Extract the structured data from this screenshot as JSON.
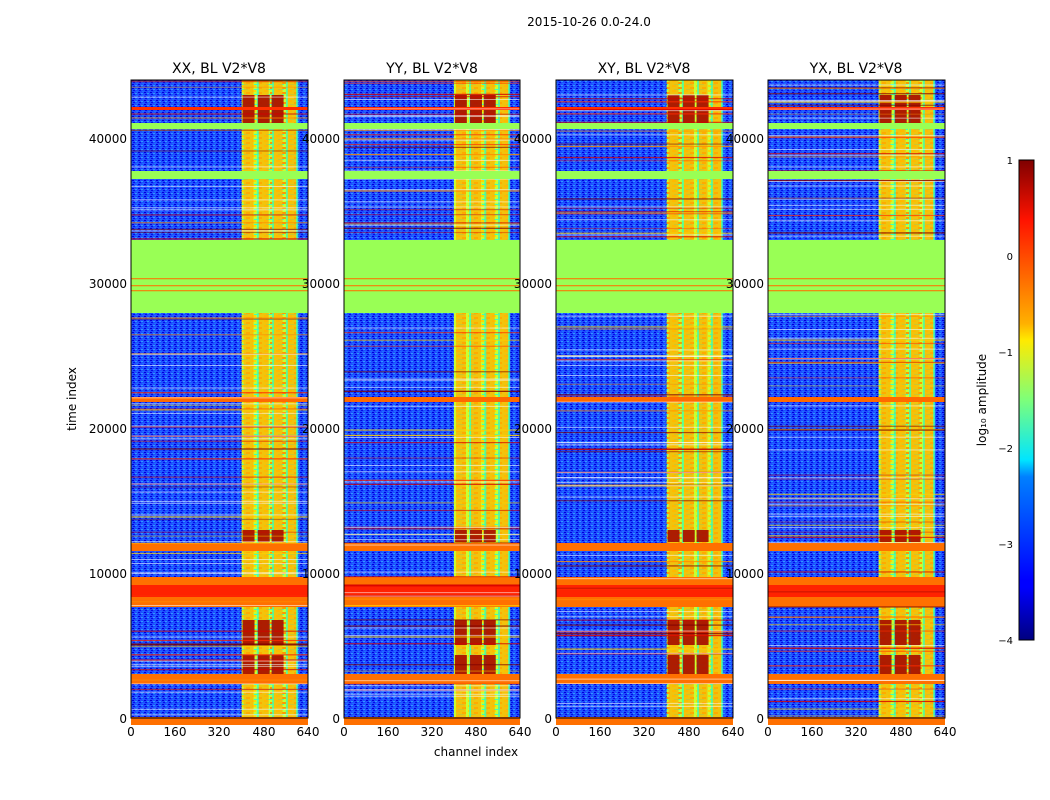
{
  "suptitle": "2015-10-26 0.0-24.0",
  "chart_data": [
    {
      "type": "heatmap",
      "title": "XX, BL V2*V8",
      "xlabel": "",
      "ylabel": "time index",
      "xlim": [
        0,
        640
      ],
      "ylim": [
        0,
        44000
      ],
      "xticks": [
        "0",
        "160",
        "320",
        "480",
        "640"
      ],
      "yticks": [
        "0",
        "10000",
        "20000",
        "30000",
        "40000"
      ]
    },
    {
      "type": "heatmap",
      "title": "YY, BL V2*V8",
      "xlabel": "channel index",
      "ylabel": "",
      "xlim": [
        0,
        640
      ],
      "ylim": [
        0,
        44000
      ],
      "xticks": [
        "0",
        "160",
        "320",
        "480",
        "640"
      ],
      "yticks": [
        "0",
        "10000",
        "20000",
        "30000",
        "40000"
      ]
    },
    {
      "type": "heatmap",
      "title": "XY, BL V2*V8",
      "xlabel": "",
      "ylabel": "",
      "xlim": [
        0,
        640
      ],
      "ylim": [
        0,
        44000
      ],
      "xticks": [
        "0",
        "160",
        "320",
        "480",
        "640"
      ],
      "yticks": [
        "0",
        "10000",
        "20000",
        "30000",
        "40000"
      ]
    },
    {
      "type": "heatmap",
      "title": "YX, BL V2*V8",
      "xlabel": "",
      "ylabel": "",
      "xlim": [
        0,
        640
      ],
      "ylim": [
        0,
        44000
      ],
      "xticks": [
        "0",
        "160",
        "320",
        "480",
        "640"
      ],
      "yticks": [
        "0",
        "10000",
        "20000",
        "30000",
        "40000"
      ]
    }
  ],
  "colorbar": {
    "label": "log₁₀ amplitude",
    "range": [
      -4,
      1
    ],
    "ticks": [
      "1",
      "0",
      "−1",
      "−2",
      "−3",
      "−4"
    ]
  },
  "colors": {
    "flagged": "#99ff55",
    "low": "#0000cc",
    "high": "#800000"
  }
}
